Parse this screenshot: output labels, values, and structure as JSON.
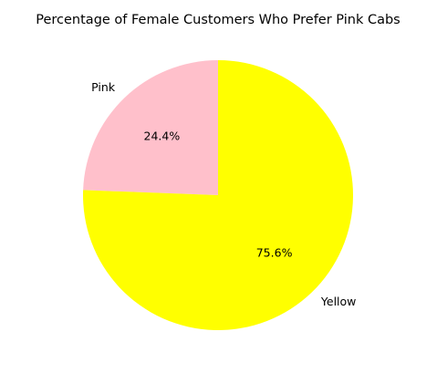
{
  "chart_data": {
    "type": "pie",
    "title": "Percentage of Female Customers Who Prefer Pink Cabs",
    "slices": [
      {
        "label": "Pink",
        "value": 24.4,
        "value_label": "24.4%",
        "color": "#FFC0CB"
      },
      {
        "label": "Yellow",
        "value": 75.6,
        "value_label": "75.6%",
        "color": "#FFFF00"
      }
    ],
    "start_angle_deg": 90,
    "direction": "counterclockwise",
    "legend": "none"
  }
}
